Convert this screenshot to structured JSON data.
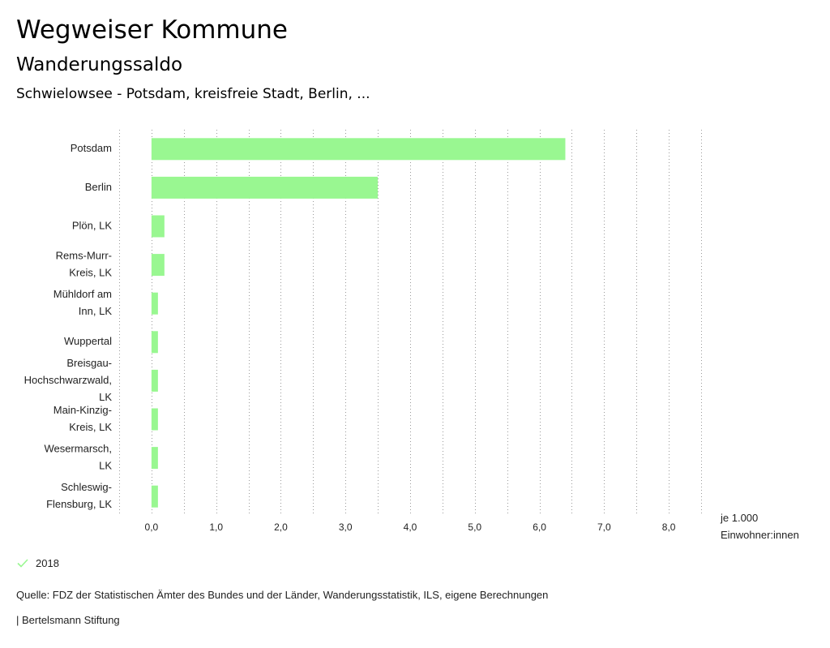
{
  "header": {
    "title": "Wegweiser Kommune",
    "subtitle": "Wanderungssaldo",
    "region": "Schwielowsee - Potsdam, kreisfreie Stadt, Berlin, ..."
  },
  "chart_data": {
    "type": "bar",
    "orientation": "horizontal",
    "categories": [
      "Potsdam",
      "Berlin",
      "Plön, LK",
      "Rems-Murr-Kreis, LK",
      "Mühldorf am Inn, LK",
      "Wuppertal",
      "Breisgau-Hochschwarzwald, LK",
      "Main-Kinzig-Kreis, LK",
      "Wesermarsch, LK",
      "Schleswig-Flensburg, LK"
    ],
    "category_lines": [
      [
        "Potsdam"
      ],
      [
        "Berlin"
      ],
      [
        "Plön, LK"
      ],
      [
        "Rems-Murr-",
        "Kreis, LK"
      ],
      [
        "Mühldorf am",
        "Inn, LK"
      ],
      [
        "Wuppertal"
      ],
      [
        "Breisgau-",
        "Hochschwarzwald,",
        "LK"
      ],
      [
        "Main-Kinzig-",
        "Kreis, LK"
      ],
      [
        "Wesermarsch,",
        "LK"
      ],
      [
        "Schleswig-",
        "Flensburg, LK"
      ]
    ],
    "series": [
      {
        "name": "2018",
        "values": [
          6.4,
          3.5,
          0.2,
          0.2,
          0.1,
          0.1,
          0.1,
          0.1,
          0.1,
          0.1
        ]
      }
    ],
    "xlim": [
      -0.5,
      8.5
    ],
    "xticks": [
      0,
      1,
      2,
      3,
      4,
      5,
      6,
      7,
      8
    ],
    "xtick_labels": [
      "0,0",
      "1,0",
      "2,0",
      "3,0",
      "4,0",
      "5,0",
      "6,0",
      "7,0",
      "8,0"
    ],
    "xlabel_lines": [
      "je 1.000",
      "Einwohner:innen"
    ],
    "grid": "vertical dotted",
    "legend": "bottom-left",
    "bar_color": "#99f791"
  },
  "legend": {
    "label": "2018",
    "icon": "check-icon",
    "color": "#99f791"
  },
  "footer": {
    "source": "Quelle: FDZ der Statistischen Ämter des Bundes und der Länder, Wanderungsstatistik, ILS, eigene Berechnungen",
    "publisher": "| Bertelsmann Stiftung"
  }
}
